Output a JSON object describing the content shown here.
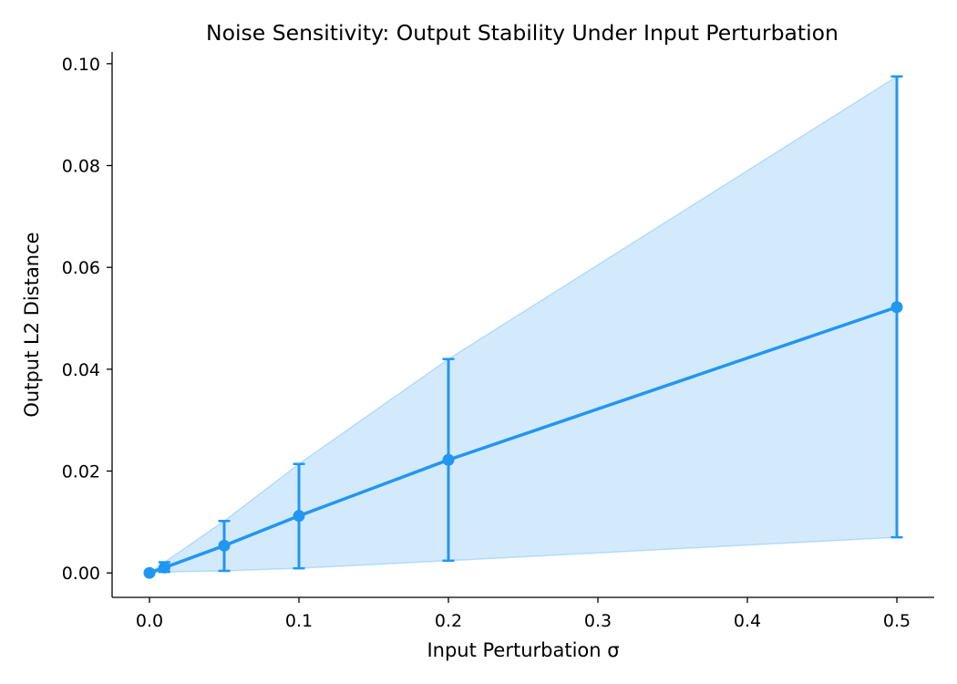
{
  "chart_data": {
    "type": "line",
    "title": "Noise Sensitivity: Output Stability Under Input Perturbation",
    "xlabel": "Input Perturbation σ",
    "ylabel": "Output L2 Distance",
    "xlim": [
      -0.025,
      0.525
    ],
    "ylim": [
      -0.0048,
      0.1023
    ],
    "x_ticks": [
      0.0,
      0.1,
      0.2,
      0.3,
      0.4,
      0.5
    ],
    "x_tick_labels": [
      "0.0",
      "0.1",
      "0.2",
      "0.3",
      "0.4",
      "0.5"
    ],
    "y_ticks": [
      0.0,
      0.02,
      0.04,
      0.06,
      0.08,
      0.1
    ],
    "y_tick_labels": [
      "0.00",
      "0.02",
      "0.04",
      "0.06",
      "0.08",
      "0.10"
    ],
    "grid": false,
    "series": [
      {
        "x": [
          0.0,
          0.01,
          0.05,
          0.1,
          0.2,
          0.5
        ],
        "y": [
          0.0,
          0.00105,
          0.00535,
          0.0112,
          0.0222,
          0.0522
        ],
        "err_low": [
          0.0,
          0.0002,
          0.0004,
          0.0009,
          0.0024,
          0.007
        ],
        "err_high": [
          0.0,
          0.0021,
          0.0102,
          0.0214,
          0.042,
          0.0975
        ],
        "color": "#2196f3"
      }
    ],
    "band": {
      "lower": [
        0.0,
        0.0002,
        0.0004,
        0.0009,
        0.0024,
        0.007
      ],
      "upper": [
        0.0,
        0.0021,
        0.0102,
        0.0214,
        0.042,
        0.0975
      ],
      "fill_color": "#2196f3",
      "fill_opacity": 0.2
    },
    "colors": {
      "line": "#2196f3",
      "axis": "#000000"
    }
  }
}
